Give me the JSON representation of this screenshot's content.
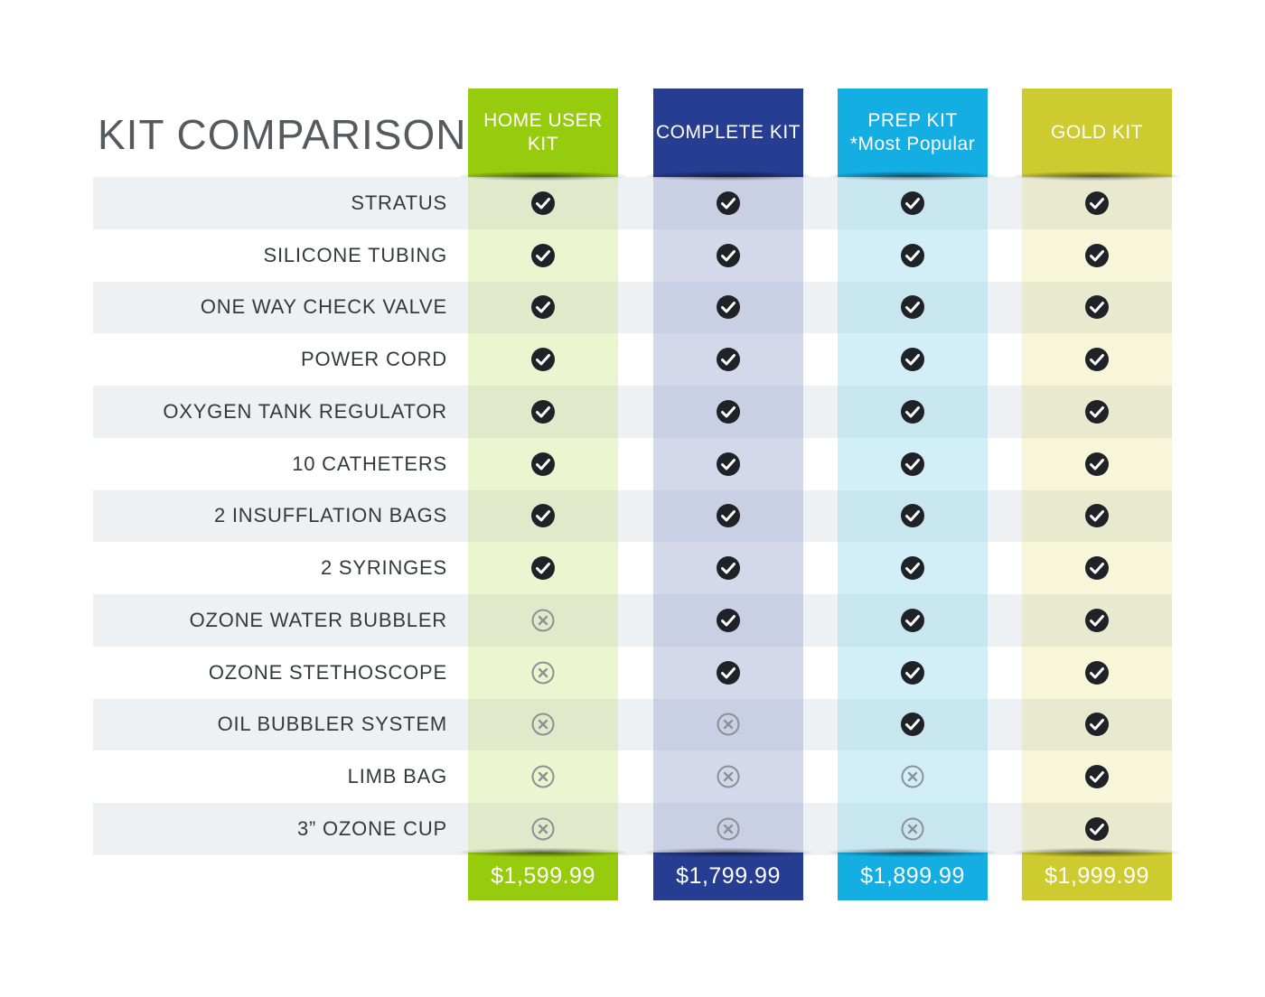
{
  "title": "KIT COMPARISON",
  "colors": {
    "row_shade": "#eef1f4",
    "check": "#1f2226",
    "cross": "#8c9196"
  },
  "kits": [
    {
      "name_lines": [
        "HOME USER",
        "KIT"
      ],
      "price": "$1,599.99",
      "head_color": "#97cc0e",
      "body_color": "#ebf5d0",
      "body_shade_color": "#e0eacb"
    },
    {
      "name_lines": [
        "COMPLETE KIT",
        ""
      ],
      "price": "$1,799.99",
      "head_color": "#263d92",
      "body_color": "#d3d9ea",
      "body_shade_color": "#c9d0e3"
    },
    {
      "name_lines": [
        "PREP KIT",
        "*Most Popular"
      ],
      "price": "$1,899.99",
      "head_color": "#15aee3",
      "body_color": "#d2eff9",
      "body_shade_color": "#c8e6f0"
    },
    {
      "name_lines": [
        "GOLD KIT",
        ""
      ],
      "price": "$1,999.99",
      "head_color": "#cdcb2f",
      "body_color": "#f7f6d9",
      "body_shade_color": "#e8e9cf"
    }
  ],
  "features": [
    {
      "label": "STRATUS",
      "included": [
        true,
        true,
        true,
        true
      ]
    },
    {
      "label": "SILICONE TUBING",
      "included": [
        true,
        true,
        true,
        true
      ]
    },
    {
      "label": "ONE WAY CHECK VALVE",
      "included": [
        true,
        true,
        true,
        true
      ]
    },
    {
      "label": "POWER CORD",
      "included": [
        true,
        true,
        true,
        true
      ]
    },
    {
      "label": "OXYGEN TANK REGULATOR",
      "included": [
        true,
        true,
        true,
        true
      ]
    },
    {
      "label": "10 CATHETERS",
      "included": [
        true,
        true,
        true,
        true
      ]
    },
    {
      "label": "2 INSUFFLATION BAGS",
      "included": [
        true,
        true,
        true,
        true
      ]
    },
    {
      "label": "2 SYRINGES",
      "included": [
        true,
        true,
        true,
        true
      ]
    },
    {
      "label": "OZONE WATER BUBBLER",
      "included": [
        false,
        true,
        true,
        true
      ]
    },
    {
      "label": "OZONE STETHOSCOPE",
      "included": [
        false,
        true,
        true,
        true
      ]
    },
    {
      "label": "OIL BUBBLER SYSTEM",
      "included": [
        false,
        false,
        true,
        true
      ]
    },
    {
      "label": "LIMB BAG",
      "included": [
        false,
        false,
        false,
        true
      ]
    },
    {
      "label": "3” OZONE CUP",
      "included": [
        false,
        false,
        false,
        true
      ]
    }
  ]
}
